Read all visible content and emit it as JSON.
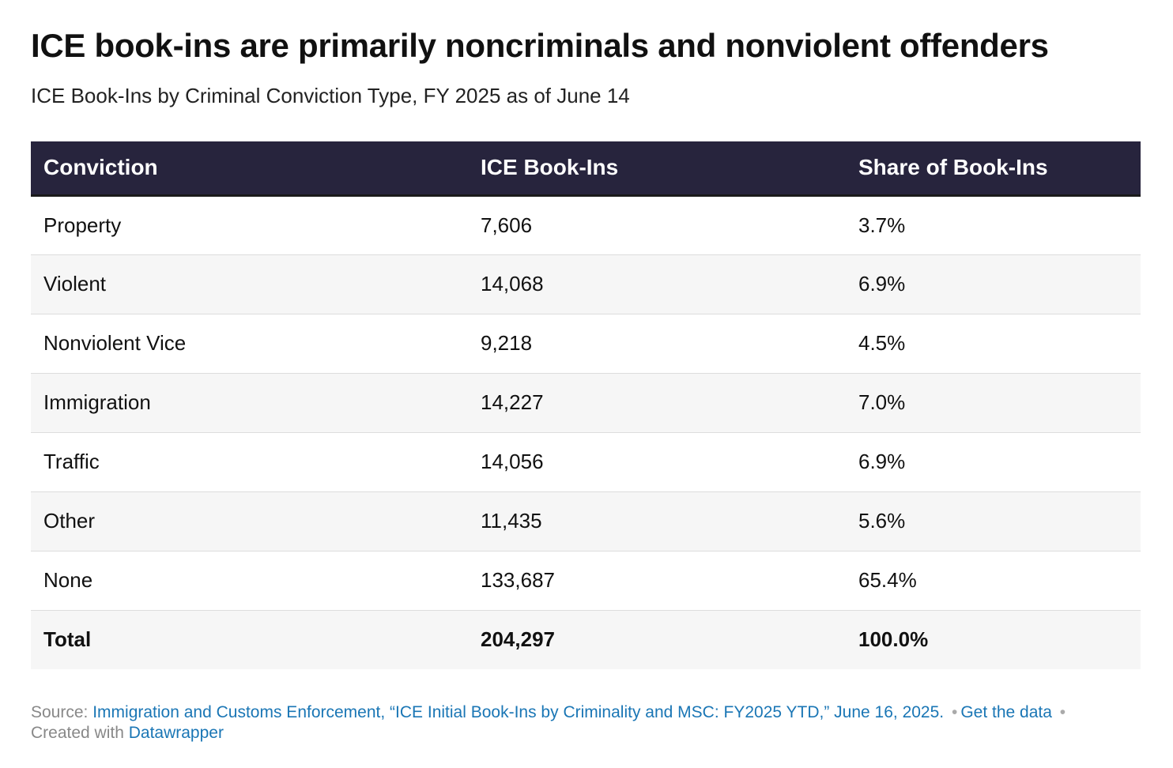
{
  "title": "ICE book-ins are primarily noncriminals and nonviolent offenders",
  "subtitle": "ICE Book-Ins by Criminal Conviction Type, FY 2025 as of June 14",
  "chart_data": {
    "type": "table",
    "columns": [
      "Conviction",
      "ICE Book-Ins",
      "Share of Book-Ins"
    ],
    "rows": [
      {
        "conviction": "Property",
        "book_ins": "7,606",
        "share": "3.7%"
      },
      {
        "conviction": "Violent",
        "book_ins": "14,068",
        "share": "6.9%"
      },
      {
        "conviction": "Nonviolent Vice",
        "book_ins": "9,218",
        "share": "4.5%"
      },
      {
        "conviction": "Immigration",
        "book_ins": "14,227",
        "share": "7.0%"
      },
      {
        "conviction": "Traffic",
        "book_ins": "14,056",
        "share": "6.9%"
      },
      {
        "conviction": "Other",
        "book_ins": "11,435",
        "share": "5.6%"
      },
      {
        "conviction": "None",
        "book_ins": "133,687",
        "share": "65.4%"
      }
    ],
    "total": {
      "conviction": "Total",
      "book_ins": "204,297",
      "share": "100.0%"
    }
  },
  "footer": {
    "source_label": "Source:",
    "source_text": "Immigration and Customs Enforcement, “ICE Initial Book-Ins by Criminality and MSC: FY2025 YTD,” June 16, 2025.",
    "separator": "•",
    "get_data": "Get the data",
    "created_with": "Created with",
    "datawrapper": "Datawrapper"
  },
  "colors": {
    "header_bg": "#27243d",
    "link": "#1a76b5",
    "alt_row": "#f6f6f6"
  }
}
